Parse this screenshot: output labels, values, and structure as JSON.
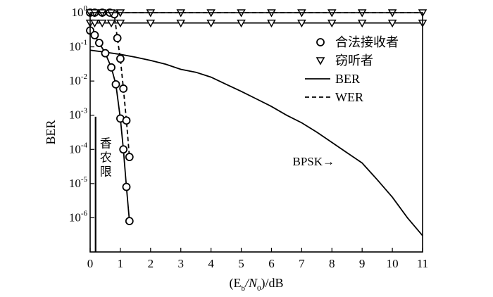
{
  "chart_data": {
    "type": "line",
    "xlabel": {
      "main": "(E",
      "sub1": "b",
      "mid": "/N",
      "sub2": "0",
      "tail": ")/dB"
    },
    "ylabel": "BER",
    "xlim": [
      0,
      11
    ],
    "ylim": [
      1e-07,
      1
    ],
    "yscale": "log",
    "x_ticks": [
      0,
      1,
      2,
      3,
      4,
      5,
      6,
      7,
      8,
      9,
      10,
      11
    ],
    "y_ticks": [
      {
        "base": "10",
        "exp": "0",
        "value": 1
      },
      {
        "base": "10",
        "exp": "-1",
        "value": 0.1
      },
      {
        "base": "10",
        "exp": "-2",
        "value": 0.01
      },
      {
        "base": "10",
        "exp": "-3",
        "value": 0.001
      },
      {
        "base": "10",
        "exp": "-4",
        "value": 0.0001
      },
      {
        "base": "10",
        "exp": "-5",
        "value": 1e-05
      },
      {
        "base": "10",
        "exp": "-6",
        "value": 1e-06
      }
    ],
    "grid": false,
    "legend_position": "top-right",
    "legend": [
      {
        "label": "合法接收者",
        "marker": "circle",
        "line": "none"
      },
      {
        "label": "窃听者",
        "marker": "triangle-down",
        "line": "none"
      },
      {
        "label": "BER",
        "marker": "none",
        "line": "solid"
      },
      {
        "label": "WER",
        "marker": "none",
        "line": "dashed"
      }
    ],
    "series": [
      {
        "marker": "circle",
        "line": "solid",
        "x": [
          0.0,
          0.15,
          0.3,
          0.5,
          0.7,
          0.85,
          1.0,
          1.1,
          1.2,
          1.3
        ],
        "y": [
          0.3,
          0.22,
          0.13,
          0.065,
          0.025,
          0.008,
          0.0008,
          0.0001,
          8e-06,
          8e-07
        ]
      },
      {
        "marker": "circle",
        "line": "dashed",
        "x": [
          0.0,
          0.15,
          0.4,
          0.65,
          0.8,
          0.9,
          1.0,
          1.1,
          1.2,
          1.3
        ],
        "y": [
          1.0,
          1.0,
          1.0,
          1.0,
          0.9,
          0.18,
          0.045,
          0.006,
          0.0007,
          6e-05
        ]
      },
      {
        "marker": "triangle-down",
        "line": "solid",
        "x": [
          0.0,
          0.15,
          0.4,
          0.7,
          1.0,
          2.0,
          3.0,
          4.0,
          5.0,
          6.0,
          7.0,
          8.0,
          9.0,
          10.0,
          11.0
        ],
        "y": [
          0.5,
          0.5,
          0.5,
          0.5,
          0.5,
          0.5,
          0.5,
          0.5,
          0.5,
          0.5,
          0.5,
          0.5,
          0.5,
          0.5,
          0.5
        ]
      },
      {
        "marker": "triangle-down",
        "line": "dashed",
        "x": [
          0.0,
          0.15,
          0.4,
          0.7,
          1.0,
          2.0,
          3.0,
          4.0,
          5.0,
          6.0,
          7.0,
          8.0,
          9.0,
          10.0,
          11.0
        ],
        "y": [
          1.0,
          1.0,
          1.0,
          1.0,
          1.0,
          1.0,
          1.0,
          1.0,
          1.0,
          1.0,
          1.0,
          1.0,
          1.0,
          1.0,
          1.0
        ]
      },
      {
        "marker": "none",
        "line": "solid",
        "x": [
          0,
          0.5,
          1,
          1.5,
          2,
          2.5,
          3,
          3.5,
          4,
          4.5,
          5,
          5.5,
          6,
          6.5,
          7,
          7.5,
          8,
          8.5,
          9,
          9.5,
          10,
          10.5,
          11
        ],
        "y": [
          0.08,
          0.07,
          0.06,
          0.05,
          0.04,
          0.031,
          0.022,
          0.018,
          0.013,
          0.008,
          0.005,
          0.003,
          0.0018,
          0.001,
          0.0006,
          0.00032,
          0.00016,
          8e-05,
          4e-05,
          1.3e-05,
          4e-06,
          1e-06,
          3e-07
        ]
      }
    ],
    "annotations": {
      "shannon_x": 0.18,
      "shannon_label": [
        "香",
        "农",
        "限"
      ],
      "bpsk_label": "BPSK→",
      "bpsk_x": 6.7,
      "bpsk_y": 4.5e-05
    }
  }
}
